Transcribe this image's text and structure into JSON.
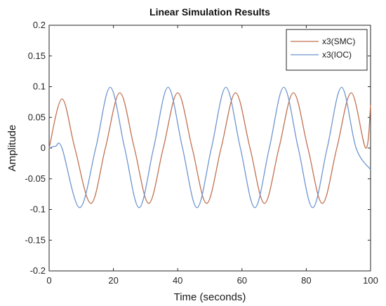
{
  "chart_data": {
    "type": "line",
    "title": "Linear Simulation Results",
    "xlabel": "Time (seconds)",
    "ylabel": "Amplitude",
    "xlim": [
      0,
      100
    ],
    "ylim": [
      -0.2,
      0.2
    ],
    "x_ticks": [
      "0",
      "20",
      "40",
      "60",
      "80",
      "100"
    ],
    "y_ticks": [
      "-0.2",
      "-0.15",
      "-0.1",
      "-0.05",
      "0",
      "0.05",
      "0.1",
      "0.15",
      "0.2"
    ],
    "grid": false,
    "legend_position": "top-right",
    "series": [
      {
        "name": "x3(SMC)",
        "color": "#c0714f",
        "x": [
          0,
          4,
          8,
          13,
          17.5,
          22,
          26.5,
          31,
          35.5,
          40,
          44.5,
          49,
          53.5,
          58,
          62.5,
          67,
          71.5,
          76,
          80.5,
          85,
          89.5,
          94,
          98.5,
          100
        ],
        "y": [
          0.0,
          0.08,
          0.0,
          -0.09,
          0.0,
          0.09,
          0.0,
          -0.09,
          0.0,
          0.09,
          0.0,
          -0.09,
          0.0,
          0.09,
          0.0,
          -0.09,
          0.0,
          0.09,
          0.0,
          -0.09,
          0.0,
          0.09,
          0.0,
          0.07
        ]
      },
      {
        "name": "x3(IOC)",
        "color": "#6e95cf",
        "x": [
          0,
          2,
          4,
          9.5,
          14.5,
          19,
          23.5,
          28,
          32.5,
          37,
          41.5,
          46,
          50.5,
          55,
          59.5,
          64,
          68.5,
          73,
          77.5,
          82,
          86.5,
          91,
          95.5,
          100
        ],
        "y": [
          0.0,
          0.003,
          0.0,
          -0.097,
          0.0,
          0.099,
          0.0,
          -0.097,
          0.0,
          0.099,
          0.0,
          -0.097,
          0.0,
          0.099,
          0.0,
          -0.097,
          0.0,
          0.099,
          0.0,
          -0.097,
          0.0,
          0.099,
          0.0,
          -0.035
        ]
      }
    ]
  }
}
